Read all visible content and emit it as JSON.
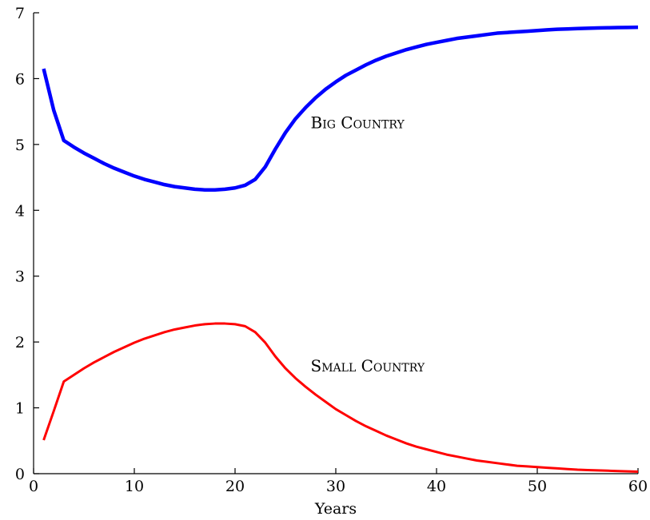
{
  "chart_data": {
    "type": "line",
    "title": "",
    "xlabel": "Years",
    "ylabel": "",
    "xlim": [
      0,
      60
    ],
    "ylim": [
      0,
      7
    ],
    "xticks": [
      0,
      10,
      20,
      30,
      40,
      50,
      60
    ],
    "yticks": [
      0,
      1,
      2,
      3,
      4,
      5,
      6,
      7
    ],
    "grid": false,
    "legend": "inline-labels",
    "series": [
      {
        "name": "Big Country",
        "color": "#0000ff",
        "x": [
          1,
          2,
          3,
          4,
          5,
          6,
          7,
          8,
          9,
          10,
          11,
          12,
          13,
          14,
          15,
          16,
          17,
          18,
          19,
          20,
          21,
          22,
          23,
          24,
          25,
          26,
          27,
          28,
          29,
          30,
          31,
          32,
          33,
          34,
          35,
          36,
          37,
          38,
          39,
          40,
          41,
          42,
          43,
          44,
          45,
          46,
          47,
          48,
          49,
          50,
          51,
          52,
          53,
          54,
          55,
          56,
          57,
          58,
          59,
          60
        ],
        "y": [
          6.15,
          5.52,
          5.06,
          4.96,
          4.87,
          4.79,
          4.71,
          4.64,
          4.58,
          4.52,
          4.47,
          4.43,
          4.39,
          4.36,
          4.34,
          4.32,
          4.31,
          4.31,
          4.32,
          4.34,
          4.38,
          4.47,
          4.66,
          4.93,
          5.18,
          5.39,
          5.56,
          5.71,
          5.84,
          5.95,
          6.05,
          6.13,
          6.21,
          6.28,
          6.34,
          6.39,
          6.44,
          6.48,
          6.52,
          6.55,
          6.58,
          6.61,
          6.63,
          6.65,
          6.67,
          6.69,
          6.7,
          6.71,
          6.72,
          6.73,
          6.74,
          6.75,
          6.755,
          6.76,
          6.765,
          6.77,
          6.772,
          6.775,
          6.777,
          6.78
        ]
      },
      {
        "name": "Small Country",
        "color": "#ff0000",
        "x": [
          1,
          2,
          3,
          4,
          5,
          6,
          7,
          8,
          9,
          10,
          11,
          12,
          13,
          14,
          15,
          16,
          17,
          18,
          19,
          20,
          21,
          22,
          23,
          24,
          25,
          26,
          27,
          28,
          29,
          30,
          31,
          32,
          33,
          34,
          35,
          36,
          37,
          38,
          39,
          40,
          41,
          42,
          43,
          44,
          45,
          46,
          47,
          48,
          49,
          50,
          51,
          52,
          53,
          54,
          55,
          56,
          57,
          58,
          59,
          60
        ],
        "y": [
          0.51,
          0.95,
          1.4,
          1.5,
          1.6,
          1.69,
          1.77,
          1.85,
          1.92,
          1.99,
          2.05,
          2.1,
          2.15,
          2.19,
          2.22,
          2.25,
          2.27,
          2.28,
          2.28,
          2.27,
          2.24,
          2.15,
          1.99,
          1.78,
          1.6,
          1.45,
          1.32,
          1.2,
          1.09,
          0.98,
          0.89,
          0.8,
          0.72,
          0.65,
          0.58,
          0.52,
          0.46,
          0.41,
          0.37,
          0.33,
          0.29,
          0.26,
          0.23,
          0.2,
          0.18,
          0.16,
          0.14,
          0.12,
          0.11,
          0.1,
          0.09,
          0.08,
          0.07,
          0.06,
          0.055,
          0.05,
          0.045,
          0.04,
          0.035,
          0.03
        ]
      }
    ],
    "annotations": [
      {
        "text": "Big Country",
        "x": 27.5,
        "y": 5.25
      },
      {
        "text": "Small Country",
        "x": 27.5,
        "y": 1.55
      }
    ]
  }
}
